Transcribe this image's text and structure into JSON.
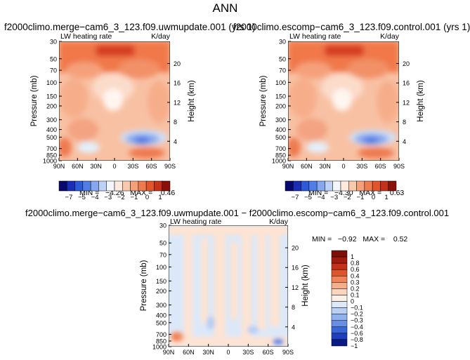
{
  "main_title": "ANN",
  "panel1": {
    "title": "f2000climo.merge−cam6_3_123.f09.uwmupdate.001 (yrs 1)",
    "field": "LW heating rate",
    "units": "K/day",
    "stats": "MIN =   −4.26   MAX =    0.46"
  },
  "panel2": {
    "title": "f2000climo.escomp−cam6_3_123.f09.control.001 (yrs 1)",
    "field": "LW heating rate",
    "units": "K/day",
    "stats": "MIN =   −4.30   MAX =    0.63"
  },
  "panel3": {
    "title": "f2000climo.merge−cam6_3_123.f09.uwmupdate.001 − f2000climo.escomp−cam6_3_123.f09.control.001",
    "field": "LW heating rate",
    "units": "K/day",
    "stats": "MIN =   −0.92   MAX =    0.52"
  },
  "chart_data": [
    {
      "type": "heatmap",
      "title": "f2000climo.merge−cam6_3_123.f09.uwmupdate.001 (yrs 1)",
      "xlabel": "",
      "ylabel": "Pressure (mb)",
      "y2label": "Height (km)",
      "x_ticks": [
        "90N",
        "60N",
        "30N",
        "0",
        "30S",
        "60S",
        "90S"
      ],
      "y_ticks": [
        1000,
        850,
        700,
        500,
        400,
        300,
        200,
        150,
        100,
        70,
        50,
        30
      ],
      "y2_ticks": [
        4,
        8,
        12,
        16,
        20
      ],
      "levels": [
        -7,
        -6,
        -5,
        -4,
        -3,
        -2.5,
        -2,
        -1.5,
        -1,
        -0.5,
        0,
        0.5,
        1
      ],
      "legend_labels": [
        "−7",
        "−5",
        "−4",
        "−3",
        "−2",
        "−1",
        "0",
        "1"
      ],
      "min": -4.26,
      "max": 0.46
    },
    {
      "type": "heatmap",
      "title": "f2000climo.escomp−cam6_3_123.f09.control.001 (yrs 1)",
      "xlabel": "",
      "ylabel": "Pressure (mb)",
      "y2label": "Height (km)",
      "x_ticks": [
        "90N",
        "60N",
        "30N",
        "0",
        "30S",
        "60S",
        "90S"
      ],
      "y_ticks": [
        1000,
        850,
        700,
        500,
        400,
        300,
        200,
        150,
        100,
        70,
        50,
        30
      ],
      "y2_ticks": [
        4,
        8,
        12,
        16,
        20
      ],
      "levels": [
        -7,
        -6,
        -5,
        -4,
        -3,
        -2.5,
        -2,
        -1.5,
        -1,
        -0.5,
        0,
        0.5,
        1
      ],
      "legend_labels": [
        "−7",
        "−5",
        "−4",
        "−3",
        "−2",
        "−1",
        "0",
        "1"
      ],
      "min": -4.3,
      "max": 0.63
    },
    {
      "type": "heatmap",
      "title": "f2000climo.merge−cam6_3_123.f09.uwmupdate.001 − f2000climo.escomp−cam6_3_123.f09.control.001",
      "xlabel": "",
      "ylabel": "Pressure (mb)",
      "y2label": "Height (km)",
      "x_ticks": [
        "90N",
        "60N",
        "30N",
        "0",
        "30S",
        "60S",
        "90S"
      ],
      "y_ticks": [
        1000,
        850,
        700,
        500,
        400,
        300,
        200,
        150,
        100,
        70,
        50,
        30
      ],
      "y2_ticks": [
        4,
        8,
        12,
        16,
        20
      ],
      "levels": [
        1,
        0.8,
        0.6,
        0.4,
        0.3,
        0.2,
        0.1,
        0,
        -0.1,
        -0.2,
        -0.3,
        -0.4,
        -0.6,
        -0.8,
        -1
      ],
      "legend_labels": [
        "1",
        "0.8",
        "0.6",
        "0.4",
        "0.3",
        "0.2",
        "0.1",
        "0",
        "−0.1",
        "−0.2",
        "−0.3",
        "−0.4",
        "−0.6",
        "−0.8",
        "−1"
      ],
      "min": -0.92,
      "max": 0.52
    }
  ],
  "colors": {
    "abs_scale": [
      "#08086e",
      "#1b2fb6",
      "#2c5ad8",
      "#4f7ee6",
      "#86a7ef",
      "#bdd0f7",
      "#f3f6fd",
      "#fde9dd",
      "#f9c9ad",
      "#f4a07a",
      "#ee7a4f",
      "#e2552b",
      "#c4321a",
      "#8a1108"
    ],
    "diff_scale": [
      "#7c0f08",
      "#a11a0e",
      "#c5301a",
      "#e0542d",
      "#f08358",
      "#f6ad8a",
      "#fbd5bf",
      "#fdf0e7",
      "#dde8f9",
      "#b9cff4",
      "#8fb1ee",
      "#6690e6",
      "#3a66d8",
      "#1f3fc0",
      "#0a1a86"
    ]
  }
}
